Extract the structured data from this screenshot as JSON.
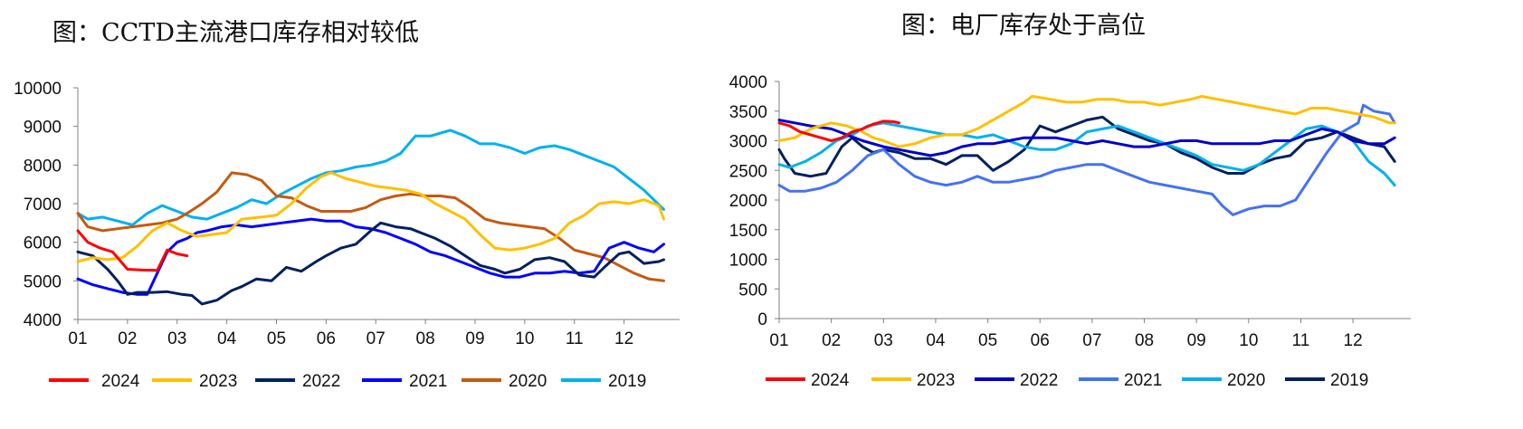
{
  "chart_data": [
    {
      "type": "line",
      "title": "图：CCTD主流港口库存相对较低",
      "x": [
        "01",
        "02",
        "03",
        "04",
        "05",
        "06",
        "07",
        "08",
        "09",
        "10",
        "11",
        "12"
      ],
      "ylim": [
        4000,
        10000
      ],
      "yticks": [
        4000,
        5000,
        6000,
        7000,
        8000,
        9000,
        10000
      ],
      "legend_position": "bottom",
      "series": [
        {
          "name": "2024",
          "color": "#ff0000",
          "x": [
            1,
            1.2,
            1.45,
            1.7,
            2,
            2.3,
            2.6,
            2.8,
            3,
            3.2
          ],
          "values": [
            6300,
            6000,
            5850,
            5750,
            5300,
            5280,
            5270,
            5800,
            5700,
            5650
          ]
        },
        {
          "name": "2023",
          "color": "#ffc000",
          "x": [
            1,
            1.3,
            1.6,
            1.9,
            2.2,
            2.5,
            2.8,
            3.1,
            3.4,
            3.7,
            4,
            4.3,
            4.7,
            5,
            5.3,
            5.6,
            5.9,
            6.1,
            6.4,
            6.7,
            7,
            7.3,
            7.6,
            7.9,
            8.2,
            8.5,
            8.8,
            9.1,
            9.4,
            9.7,
            10,
            10.3,
            10.6,
            10.9,
            11.2,
            11.5,
            11.8,
            12.1,
            12.4,
            12.7,
            12.8
          ],
          "values": [
            5500,
            5600,
            5550,
            5600,
            5900,
            6300,
            6500,
            6300,
            6150,
            6200,
            6250,
            6600,
            6650,
            6700,
            7000,
            7400,
            7700,
            7800,
            7650,
            7550,
            7450,
            7400,
            7350,
            7250,
            7000,
            6800,
            6600,
            6200,
            5850,
            5800,
            5850,
            5950,
            6100,
            6500,
            6700,
            7000,
            7050,
            7000,
            7100,
            6950,
            6600
          ]
        },
        {
          "name": "2022",
          "color": "#002060",
          "x": [
            1,
            1.3,
            1.6,
            1.8,
            2,
            2.2,
            2.5,
            2.8,
            3.1,
            3.3,
            3.5,
            3.8,
            4.1,
            4.3,
            4.6,
            4.9,
            5.2,
            5.5,
            5.8,
            6,
            6.3,
            6.6,
            6.9,
            7.1,
            7.4,
            7.7,
            7.9,
            8.2,
            8.5,
            8.8,
            9.1,
            9.4,
            9.6,
            9.9,
            10.2,
            10.5,
            10.8,
            11.1,
            11.4,
            11.6,
            11.9,
            12.1,
            12.4,
            12.7,
            12.8
          ],
          "values": [
            5750,
            5650,
            5300,
            5000,
            4650,
            4700,
            4700,
            4720,
            4650,
            4620,
            4400,
            4500,
            4750,
            4850,
            5050,
            5000,
            5350,
            5250,
            5500,
            5650,
            5850,
            5950,
            6300,
            6500,
            6400,
            6350,
            6250,
            6100,
            5900,
            5650,
            5400,
            5300,
            5200,
            5300,
            5550,
            5600,
            5500,
            5150,
            5100,
            5350,
            5700,
            5750,
            5450,
            5500,
            5550
          ]
        },
        {
          "name": "2021",
          "color": "#0000ff",
          "x": [
            1,
            1.3,
            1.6,
            1.9,
            2.2,
            2.4,
            2.6,
            2.8,
            3,
            3.2,
            3.4,
            3.6,
            3.9,
            4.2,
            4.5,
            4.8,
            5.1,
            5.4,
            5.7,
            6,
            6.3,
            6.6,
            6.9,
            7.2,
            7.5,
            7.8,
            8.1,
            8.4,
            8.7,
            9,
            9.3,
            9.6,
            9.9,
            10.2,
            10.5,
            10.8,
            11.1,
            11.4,
            11.7,
            12,
            12.3,
            12.6,
            12.8
          ],
          "values": [
            5050,
            4900,
            4800,
            4700,
            4650,
            4650,
            5200,
            5750,
            6000,
            6100,
            6250,
            6300,
            6400,
            6450,
            6400,
            6450,
            6500,
            6550,
            6600,
            6550,
            6550,
            6400,
            6350,
            6250,
            6100,
            5950,
            5750,
            5650,
            5500,
            5350,
            5200,
            5100,
            5100,
            5200,
            5200,
            5250,
            5200,
            5250,
            5850,
            6000,
            5850,
            5750,
            5950
          ]
        },
        {
          "name": "2020",
          "color": "#c55a11",
          "x": [
            1,
            1.2,
            1.5,
            1.8,
            2.1,
            2.4,
            2.7,
            3,
            3.2,
            3.5,
            3.8,
            4.1,
            4.4,
            4.7,
            5,
            5.3,
            5.6,
            5.9,
            6.2,
            6.5,
            6.8,
            7.1,
            7.4,
            7.7,
            8,
            8.3,
            8.6,
            8.9,
            9.2,
            9.5,
            9.8,
            10.1,
            10.4,
            10.7,
            11,
            11.3,
            11.6,
            11.9,
            12.2,
            12.5,
            12.8
          ],
          "values": [
            6750,
            6400,
            6300,
            6350,
            6400,
            6450,
            6500,
            6600,
            6750,
            7000,
            7300,
            7800,
            7750,
            7600,
            7200,
            7150,
            6950,
            6800,
            6800,
            6800,
            6900,
            7100,
            7200,
            7250,
            7200,
            7200,
            7150,
            6900,
            6600,
            6500,
            6450,
            6400,
            6350,
            6100,
            5800,
            5700,
            5600,
            5400,
            5200,
            5050,
            5000
          ]
        },
        {
          "name": "2019",
          "color": "#00b0f0",
          "x": [
            1,
            1.2,
            1.5,
            1.8,
            2.1,
            2.4,
            2.7,
            3,
            3.3,
            3.6,
            3.9,
            4.2,
            4.5,
            4.8,
            5.1,
            5.4,
            5.7,
            6,
            6.3,
            6.6,
            6.9,
            7.2,
            7.5,
            7.8,
            8.1,
            8.5,
            8.8,
            9.1,
            9.4,
            9.7,
            10,
            10.3,
            10.6,
            10.9,
            11.2,
            11.5,
            11.8,
            12.1,
            12.4,
            12.6,
            12.8
          ],
          "values": [
            6750,
            6600,
            6650,
            6550,
            6450,
            6750,
            6950,
            6800,
            6650,
            6600,
            6750,
            6900,
            7100,
            7000,
            7250,
            7450,
            7650,
            7800,
            7850,
            7950,
            8000,
            8100,
            8300,
            8750,
            8750,
            8900,
            8750,
            8550,
            8550,
            8450,
            8300,
            8450,
            8500,
            8400,
            8250,
            8100,
            7950,
            7650,
            7350,
            7100,
            6850
          ]
        }
      ]
    },
    {
      "type": "line",
      "title": "图：电厂库存处于高位",
      "x": [
        "01",
        "02",
        "03",
        "04",
        "05",
        "06",
        "07",
        "08",
        "09",
        "10",
        "11",
        "12"
      ],
      "ylim": [
        0,
        4000
      ],
      "yticks": [
        0,
        500,
        1000,
        1500,
        2000,
        2500,
        3000,
        3500,
        4000
      ],
      "legend_position": "bottom",
      "series": [
        {
          "name": "2024",
          "color": "#ff0000",
          "x": [
            1,
            1.2,
            1.4,
            1.6,
            1.8,
            2,
            2.2,
            2.4,
            2.6,
            2.8,
            3,
            3.2,
            3.3
          ],
          "values": [
            3300,
            3250,
            3150,
            3100,
            3050,
            3000,
            3050,
            3150,
            3200,
            3280,
            3330,
            3320,
            3300
          ]
        },
        {
          "name": "2023",
          "color": "#ffc000",
          "x": [
            1,
            1.3,
            1.6,
            2,
            2.3,
            2.6,
            2.8,
            3,
            3.3,
            3.6,
            3.9,
            4.2,
            4.5,
            4.8,
            5.1,
            5.4,
            5.7,
            5.85,
            6.2,
            6.5,
            6.8,
            7.1,
            7.4,
            7.7,
            8,
            8.3,
            8.6,
            8.9,
            9.1,
            9.4,
            9.7,
            10,
            10.3,
            10.6,
            10.9,
            11.2,
            11.5,
            11.8,
            12.1,
            12.4,
            12.7,
            12.8
          ],
          "values": [
            3000,
            3050,
            3200,
            3300,
            3250,
            3150,
            3050,
            3000,
            2900,
            2950,
            3050,
            3100,
            3100,
            3200,
            3350,
            3500,
            3650,
            3750,
            3700,
            3650,
            3650,
            3700,
            3700,
            3650,
            3650,
            3600,
            3650,
            3700,
            3750,
            3700,
            3650,
            3600,
            3550,
            3500,
            3450,
            3550,
            3550,
            3500,
            3450,
            3400,
            3300,
            3300
          ]
        },
        {
          "name": "2022",
          "color": "#0000cc",
          "x": [
            1,
            1.3,
            1.6,
            2,
            2.3,
            2.6,
            3,
            3.3,
            3.6,
            3.9,
            4.2,
            4.5,
            4.8,
            5.1,
            5.4,
            5.7,
            6,
            6.3,
            6.6,
            6.9,
            7.2,
            7.5,
            7.8,
            8.1,
            8.4,
            8.7,
            9,
            9.3,
            9.6,
            9.9,
            10.2,
            10.5,
            10.8,
            11.1,
            11.4,
            11.7,
            12,
            12.3,
            12.6,
            12.8
          ],
          "values": [
            3350,
            3300,
            3250,
            3200,
            3100,
            3000,
            2900,
            2850,
            2800,
            2750,
            2800,
            2900,
            2950,
            2950,
            3000,
            3050,
            3050,
            3050,
            3000,
            2950,
            3000,
            2950,
            2900,
            2900,
            2950,
            3000,
            3000,
            2950,
            2950,
            2950,
            2950,
            3000,
            3000,
            3100,
            3200,
            3150,
            3000,
            2950,
            2950,
            3050
          ]
        },
        {
          "name": "2021",
          "color": "#4472f4",
          "x": [
            1,
            1.2,
            1.5,
            1.8,
            2.1,
            2.4,
            2.7,
            3,
            3.3,
            3.6,
            3.9,
            4.2,
            4.5,
            4.8,
            5.1,
            5.4,
            5.7,
            6,
            6.3,
            6.6,
            6.9,
            7.2,
            7.5,
            7.8,
            8.1,
            8.4,
            8.7,
            9,
            9.3,
            9.5,
            9.7,
            10,
            10.3,
            10.6,
            10.9,
            11.2,
            11.5,
            11.8,
            12.1,
            12.2,
            12.4,
            12.7,
            12.8
          ],
          "values": [
            2250,
            2150,
            2150,
            2200,
            2300,
            2500,
            2750,
            2850,
            2600,
            2400,
            2300,
            2250,
            2300,
            2400,
            2300,
            2300,
            2350,
            2400,
            2500,
            2550,
            2600,
            2600,
            2500,
            2400,
            2300,
            2250,
            2200,
            2150,
            2100,
            1900,
            1750,
            1850,
            1900,
            1900,
            2000,
            2400,
            2800,
            3150,
            3300,
            3600,
            3500,
            3450,
            3300
          ]
        },
        {
          "name": "2020",
          "color": "#00b0f0",
          "x": [
            1,
            1.2,
            1.5,
            1.8,
            2.1,
            2.4,
            2.7,
            3,
            3.3,
            3.6,
            3.9,
            4.2,
            4.5,
            4.8,
            5.1,
            5.4,
            5.7,
            6,
            6.3,
            6.6,
            6.9,
            7.2,
            7.5,
            7.8,
            8.1,
            8.4,
            8.7,
            9,
            9.3,
            9.6,
            9.9,
            10.2,
            10.5,
            10.8,
            11.1,
            11.4,
            11.7,
            12,
            12.3,
            12.6,
            12.8
          ],
          "values": [
            2600,
            2550,
            2650,
            2800,
            3000,
            3100,
            3250,
            3300,
            3250,
            3200,
            3150,
            3100,
            3100,
            3050,
            3100,
            3000,
            2900,
            2850,
            2850,
            2950,
            3150,
            3200,
            3250,
            3150,
            3050,
            2950,
            2850,
            2750,
            2600,
            2550,
            2500,
            2600,
            2800,
            3000,
            3200,
            3250,
            3150,
            3000,
            2650,
            2450,
            2250
          ]
        },
        {
          "name": "2019",
          "color": "#002060",
          "x": [
            1,
            1.1,
            1.3,
            1.6,
            1.9,
            2.2,
            2.4,
            2.6,
            2.8,
            3,
            3.3,
            3.6,
            3.9,
            4.2,
            4.5,
            4.8,
            5.1,
            5.4,
            5.7,
            6,
            6.3,
            6.6,
            6.9,
            7.2,
            7.5,
            7.8,
            8.1,
            8.4,
            8.7,
            9,
            9.3,
            9.6,
            9.9,
            10.2,
            10.5,
            10.8,
            11.1,
            11.4,
            11.7,
            12,
            12.3,
            12.6,
            12.8
          ],
          "values": [
            2850,
            2700,
            2450,
            2400,
            2450,
            2900,
            3050,
            2900,
            2800,
            2850,
            2800,
            2700,
            2700,
            2600,
            2750,
            2750,
            2500,
            2650,
            2850,
            3250,
            3150,
            3250,
            3350,
            3400,
            3200,
            3100,
            3000,
            2950,
            2800,
            2700,
            2550,
            2450,
            2450,
            2600,
            2700,
            2750,
            3000,
            3050,
            3150,
            3050,
            2950,
            2900,
            2650
          ]
        }
      ]
    }
  ]
}
